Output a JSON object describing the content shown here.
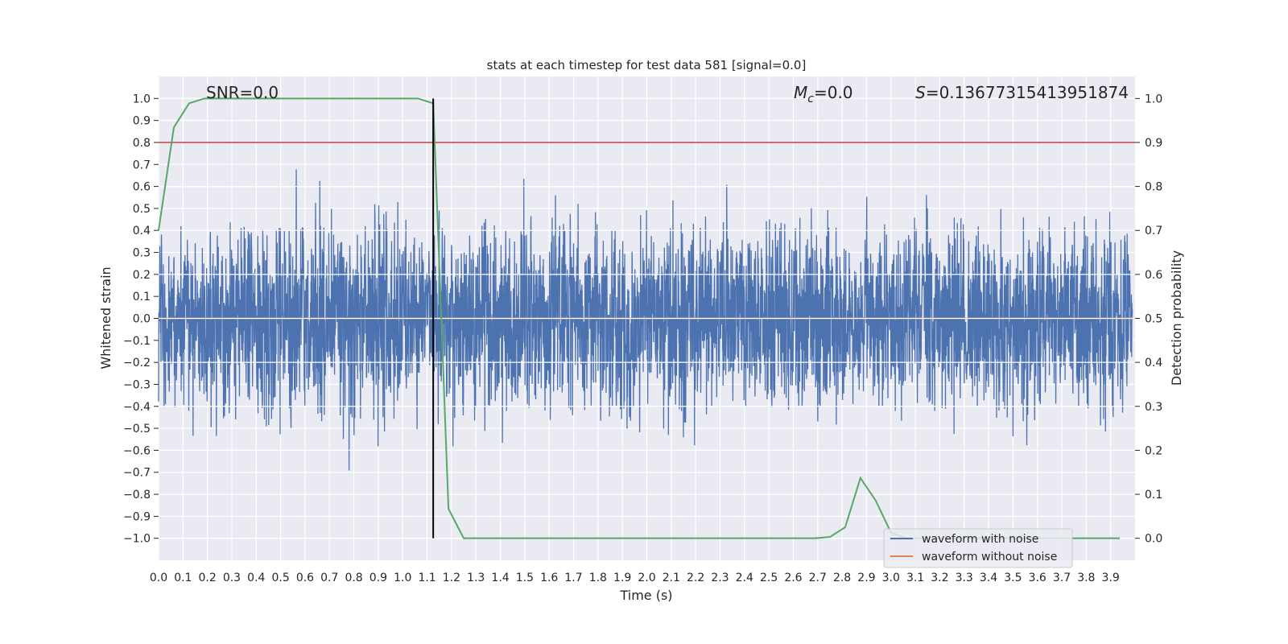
{
  "chart_data": {
    "type": "line",
    "title": "stats at each timestep for test data 581 [signal=0.0]",
    "xlabel": "Time (s)",
    "ylabel": "Whitened strain",
    "ylabel_right": "Detection probability",
    "xlim": [
      0,
      4.0
    ],
    "ylim": [
      -1.1,
      1.1
    ],
    "ylim_right": [
      -0.05,
      1.05
    ],
    "x_ticks": [
      "0.0",
      "0.1",
      "0.2",
      "0.3",
      "0.4",
      "0.5",
      "0.6",
      "0.7",
      "0.8",
      "0.9",
      "1.0",
      "1.1",
      "1.2",
      "1.3",
      "1.4",
      "1.5",
      "1.6",
      "1.7",
      "1.8",
      "1.9",
      "2.0",
      "2.1",
      "2.2",
      "2.3",
      "2.4",
      "2.5",
      "2.6",
      "2.7",
      "2.8",
      "2.9",
      "3.0",
      "3.1",
      "3.2",
      "3.3",
      "3.4",
      "3.5",
      "3.6",
      "3.7",
      "3.8",
      "3.9"
    ],
    "y_ticks": [
      "−1.0",
      "−0.9",
      "−0.8",
      "−0.7",
      "−0.6",
      "−0.5",
      "−0.4",
      "−0.3",
      "−0.2",
      "−0.1",
      "0.0",
      "0.1",
      "0.2",
      "0.3",
      "0.4",
      "0.5",
      "0.6",
      "0.7",
      "0.8",
      "0.9",
      "1.0"
    ],
    "y_ticks_right": [
      "0.0",
      "0.1",
      "0.2",
      "0.3",
      "0.4",
      "0.5",
      "0.6",
      "0.7",
      "0.8",
      "0.9",
      "1.0"
    ],
    "grid": true,
    "background": "#eaeaf2",
    "annotations": {
      "snr": "SNR=0.0",
      "mc_symbol": "M",
      "mc_sub": "c",
      "mc_value": "=0.0",
      "s_symbol": "S",
      "s_value": "=0.13677315413951874"
    },
    "series": [
      {
        "name": "waveform with noise",
        "color": "#4c72b0",
        "axis": "left",
        "amplitude_range": [
          -1.0,
          1.0
        ]
      },
      {
        "name": "waveform without noise",
        "color": "#dd8452",
        "axis": "left",
        "value": 0.0
      }
    ],
    "detection_probability": {
      "color": "#55a868",
      "axis": "right",
      "step": 0.0625,
      "values": [
        0.7,
        0.934,
        0.989,
        1.0,
        1.0,
        1.0,
        1.0,
        1.0,
        1.0,
        1.0,
        1.0,
        1.0,
        1.0,
        1.0,
        1.0,
        1.0,
        1.0,
        1.0,
        0.989,
        0.067,
        0.0,
        0.0,
        0.0,
        0.0,
        0.0,
        0.0,
        0.0,
        0.0,
        0.0,
        0.0,
        0.0,
        0.0,
        0.0,
        0.0,
        0.0,
        0.0,
        0.0,
        0.0,
        0.0,
        0.0,
        0.0,
        0.0,
        0.0,
        0.0,
        0.003,
        0.025,
        0.137,
        0.086,
        0.013,
        0.0,
        0.0,
        0.0,
        0.0,
        0.0,
        0.0,
        0.0,
        0.0,
        0.0,
        0.0,
        0.0,
        0.0,
        0.0,
        0.0,
        0.0
      ]
    },
    "threshold": {
      "value": 0.9,
      "axis": "right",
      "color": "#c44e52"
    },
    "detection_marker": {
      "x": 1.125,
      "color": "#000000"
    },
    "legend": {
      "position": "lower-right",
      "entries": [
        "waveform with noise",
        "waveform without noise"
      ]
    }
  }
}
